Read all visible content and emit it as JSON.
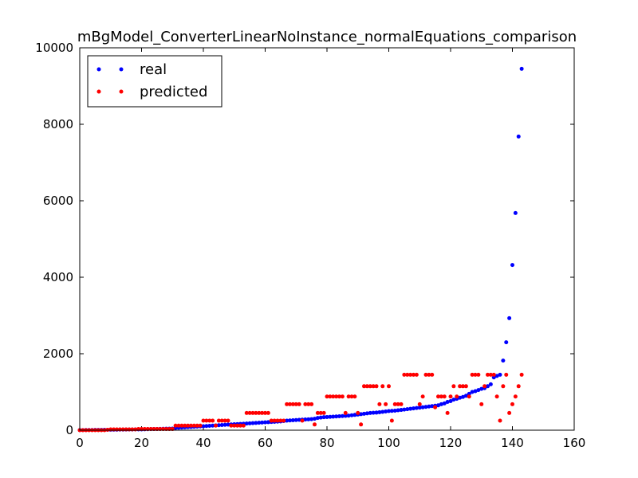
{
  "chart_data": {
    "type": "scatter",
    "title": "mBgModel_ConverterLinearNoInstance_normalEquations_comparison",
    "xlabel": "",
    "ylabel": "",
    "xlim": [
      0,
      160
    ],
    "ylim": [
      0,
      10000
    ],
    "x_ticks": [
      0,
      20,
      40,
      60,
      80,
      100,
      120,
      140,
      160
    ],
    "y_ticks": [
      0,
      2000,
      4000,
      6000,
      8000,
      10000
    ],
    "x_tick_labels": [
      "0",
      "20",
      "40",
      "60",
      "80",
      "100",
      "120",
      "140",
      "160"
    ],
    "y_tick_labels": [
      "0",
      "2000",
      "4000",
      "6000",
      "8000",
      "10000"
    ],
    "grid": false,
    "legend_position": "top-left",
    "series": [
      {
        "name": "real",
        "color": "#0000ff",
        "marker": "dot",
        "x": [
          0,
          1,
          2,
          3,
          4,
          5,
          6,
          7,
          8,
          9,
          10,
          11,
          12,
          13,
          14,
          15,
          16,
          17,
          18,
          19,
          20,
          21,
          22,
          23,
          24,
          25,
          26,
          27,
          28,
          29,
          30,
          31,
          32,
          33,
          34,
          35,
          36,
          37,
          38,
          39,
          40,
          41,
          42,
          43,
          44,
          45,
          46,
          47,
          48,
          49,
          50,
          51,
          52,
          53,
          54,
          55,
          56,
          57,
          58,
          59,
          60,
          61,
          62,
          63,
          64,
          65,
          66,
          67,
          68,
          69,
          70,
          71,
          72,
          73,
          74,
          75,
          76,
          77,
          78,
          79,
          80,
          81,
          82,
          83,
          84,
          85,
          86,
          87,
          88,
          89,
          90,
          91,
          92,
          93,
          94,
          95,
          96,
          97,
          98,
          99,
          100,
          101,
          102,
          103,
          104,
          105,
          106,
          107,
          108,
          109,
          110,
          111,
          112,
          113,
          114,
          115,
          116,
          117,
          118,
          119,
          120,
          121,
          122,
          123,
          124,
          125,
          126,
          127,
          128,
          129,
          130,
          131,
          132,
          133,
          134,
          135,
          136,
          137,
          138,
          139,
          140,
          141,
          142,
          143
        ],
        "y": [
          2,
          3,
          4,
          5,
          6,
          7,
          8,
          9,
          10,
          11,
          12,
          13,
          14,
          15,
          16,
          17,
          18,
          19,
          20,
          21,
          22,
          24,
          26,
          28,
          30,
          32,
          34,
          36,
          38,
          40,
          42,
          60,
          65,
          70,
          75,
          80,
          85,
          90,
          95,
          100,
          105,
          110,
          115,
          120,
          125,
          130,
          135,
          140,
          145,
          150,
          155,
          160,
          165,
          170,
          175,
          180,
          185,
          190,
          195,
          200,
          205,
          210,
          215,
          220,
          225,
          230,
          240,
          250,
          255,
          260,
          265,
          270,
          275,
          280,
          285,
          290,
          300,
          320,
          330,
          340,
          345,
          350,
          355,
          360,
          365,
          370,
          375,
          380,
          390,
          400,
          410,
          420,
          430,
          440,
          450,
          455,
          460,
          470,
          480,
          490,
          500,
          505,
          510,
          520,
          530,
          540,
          550,
          560,
          570,
          580,
          590,
          600,
          610,
          620,
          630,
          640,
          650,
          680,
          700,
          740,
          760,
          800,
          820,
          850,
          870,
          900,
          950,
          1000,
          1020,
          1050,
          1080,
          1100,
          1150,
          1200,
          1380,
          1420,
          1450,
          1820,
          2300,
          2930,
          4320,
          5680,
          7680,
          9450
        ]
      },
      {
        "name": "predicted",
        "color": "#ff0000",
        "marker": "dot",
        "x": [
          0,
          1,
          2,
          3,
          4,
          5,
          6,
          7,
          8,
          9,
          10,
          11,
          12,
          13,
          14,
          15,
          16,
          17,
          18,
          19,
          20,
          21,
          22,
          23,
          24,
          25,
          26,
          27,
          28,
          29,
          30,
          31,
          32,
          33,
          34,
          35,
          36,
          37,
          38,
          39,
          40,
          41,
          42,
          43,
          44,
          45,
          46,
          47,
          48,
          49,
          50,
          51,
          52,
          53,
          54,
          55,
          56,
          57,
          58,
          59,
          60,
          61,
          62,
          63,
          64,
          65,
          66,
          67,
          68,
          69,
          70,
          71,
          72,
          73,
          74,
          75,
          76,
          77,
          78,
          79,
          80,
          81,
          82,
          83,
          84,
          85,
          86,
          87,
          88,
          89,
          90,
          91,
          92,
          93,
          94,
          95,
          96,
          97,
          98,
          99,
          100,
          101,
          102,
          103,
          104,
          105,
          106,
          107,
          108,
          109,
          110,
          111,
          112,
          113,
          114,
          115,
          116,
          117,
          118,
          119,
          120,
          121,
          122,
          123,
          124,
          125,
          126,
          127,
          128,
          129,
          130,
          131,
          132,
          133,
          134,
          135,
          136,
          137,
          138,
          139,
          140,
          141,
          142,
          143
        ],
        "y": [
          0,
          0,
          0,
          0,
          0,
          0,
          0,
          0,
          0,
          10,
          20,
          20,
          20,
          20,
          20,
          20,
          20,
          20,
          20,
          30,
          30,
          30,
          30,
          30,
          30,
          30,
          30,
          30,
          30,
          30,
          30,
          120,
          120,
          120,
          120,
          120,
          120,
          120,
          120,
          120,
          250,
          250,
          250,
          250,
          120,
          250,
          250,
          250,
          250,
          120,
          120,
          120,
          120,
          120,
          450,
          450,
          450,
          450,
          450,
          450,
          450,
          450,
          250,
          250,
          250,
          250,
          250,
          680,
          680,
          680,
          680,
          680,
          250,
          680,
          680,
          680,
          150,
          450,
          450,
          450,
          880,
          880,
          880,
          880,
          880,
          880,
          450,
          880,
          880,
          880,
          450,
          150,
          1150,
          1150,
          1150,
          1150,
          1150,
          680,
          1150,
          680,
          1150,
          250,
          680,
          680,
          680,
          1450,
          1450,
          1450,
          1450,
          1450,
          680,
          880,
          1450,
          1450,
          1450,
          600,
          880,
          880,
          880,
          450,
          880,
          1150,
          880,
          1150,
          1150,
          1150,
          880,
          1450,
          1450,
          1450,
          680,
          1150,
          1450,
          1450,
          1450,
          880,
          250,
          1150,
          1450,
          450,
          680,
          880,
          1150,
          1450
        ]
      }
    ]
  }
}
